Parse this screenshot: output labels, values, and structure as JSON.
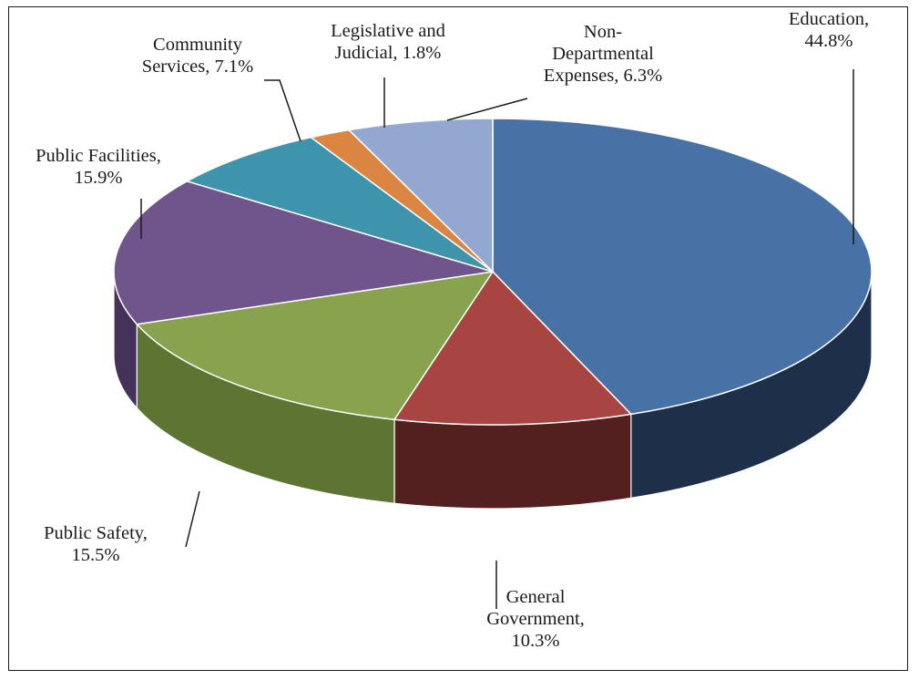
{
  "chart_data": {
    "type": "pie",
    "title": "",
    "style": "3d",
    "legend": "none",
    "slices": [
      {
        "category": "Education",
        "value": 44.8,
        "label_lines": [
          "Education,",
          "44.8%"
        ],
        "color": "#4872A6",
        "side_color": "#1E2F49"
      },
      {
        "category": "General Government",
        "value": 10.3,
        "label_lines": [
          "General",
          "Government,",
          "10.3%"
        ],
        "color": "#A84442",
        "side_color": "#53201F"
      },
      {
        "category": "Public Safety",
        "value": 15.5,
        "label_lines": [
          "Public Safety,",
          "15.5%"
        ],
        "color": "#88A24D",
        "side_color": "#5D7433"
      },
      {
        "category": "Public Facilities",
        "value": 15.9,
        "label_lines": [
          "Public Facilities,",
          "15.9%"
        ],
        "color": "#6F558B",
        "side_color": "#45325A"
      },
      {
        "category": "Community Services",
        "value": 7.1,
        "label_lines": [
          "Community",
          "Services, 7.1%"
        ],
        "color": "#3E94AC",
        "side_color": "#25606F"
      },
      {
        "category": "Legislative and Judicial",
        "value": 1.8,
        "label_lines": [
          "Legislative and",
          "Judicial, 1.8%"
        ],
        "color": "#DA8542",
        "side_color": "#8C5126"
      },
      {
        "category": "Non-Departmental Expenses",
        "value": 6.3,
        "label_lines": [
          "Non-",
          "Departmental",
          "Expenses, 6.3%"
        ],
        "color": "#93A8D1",
        "side_color": "#5F6F8F"
      }
    ]
  }
}
